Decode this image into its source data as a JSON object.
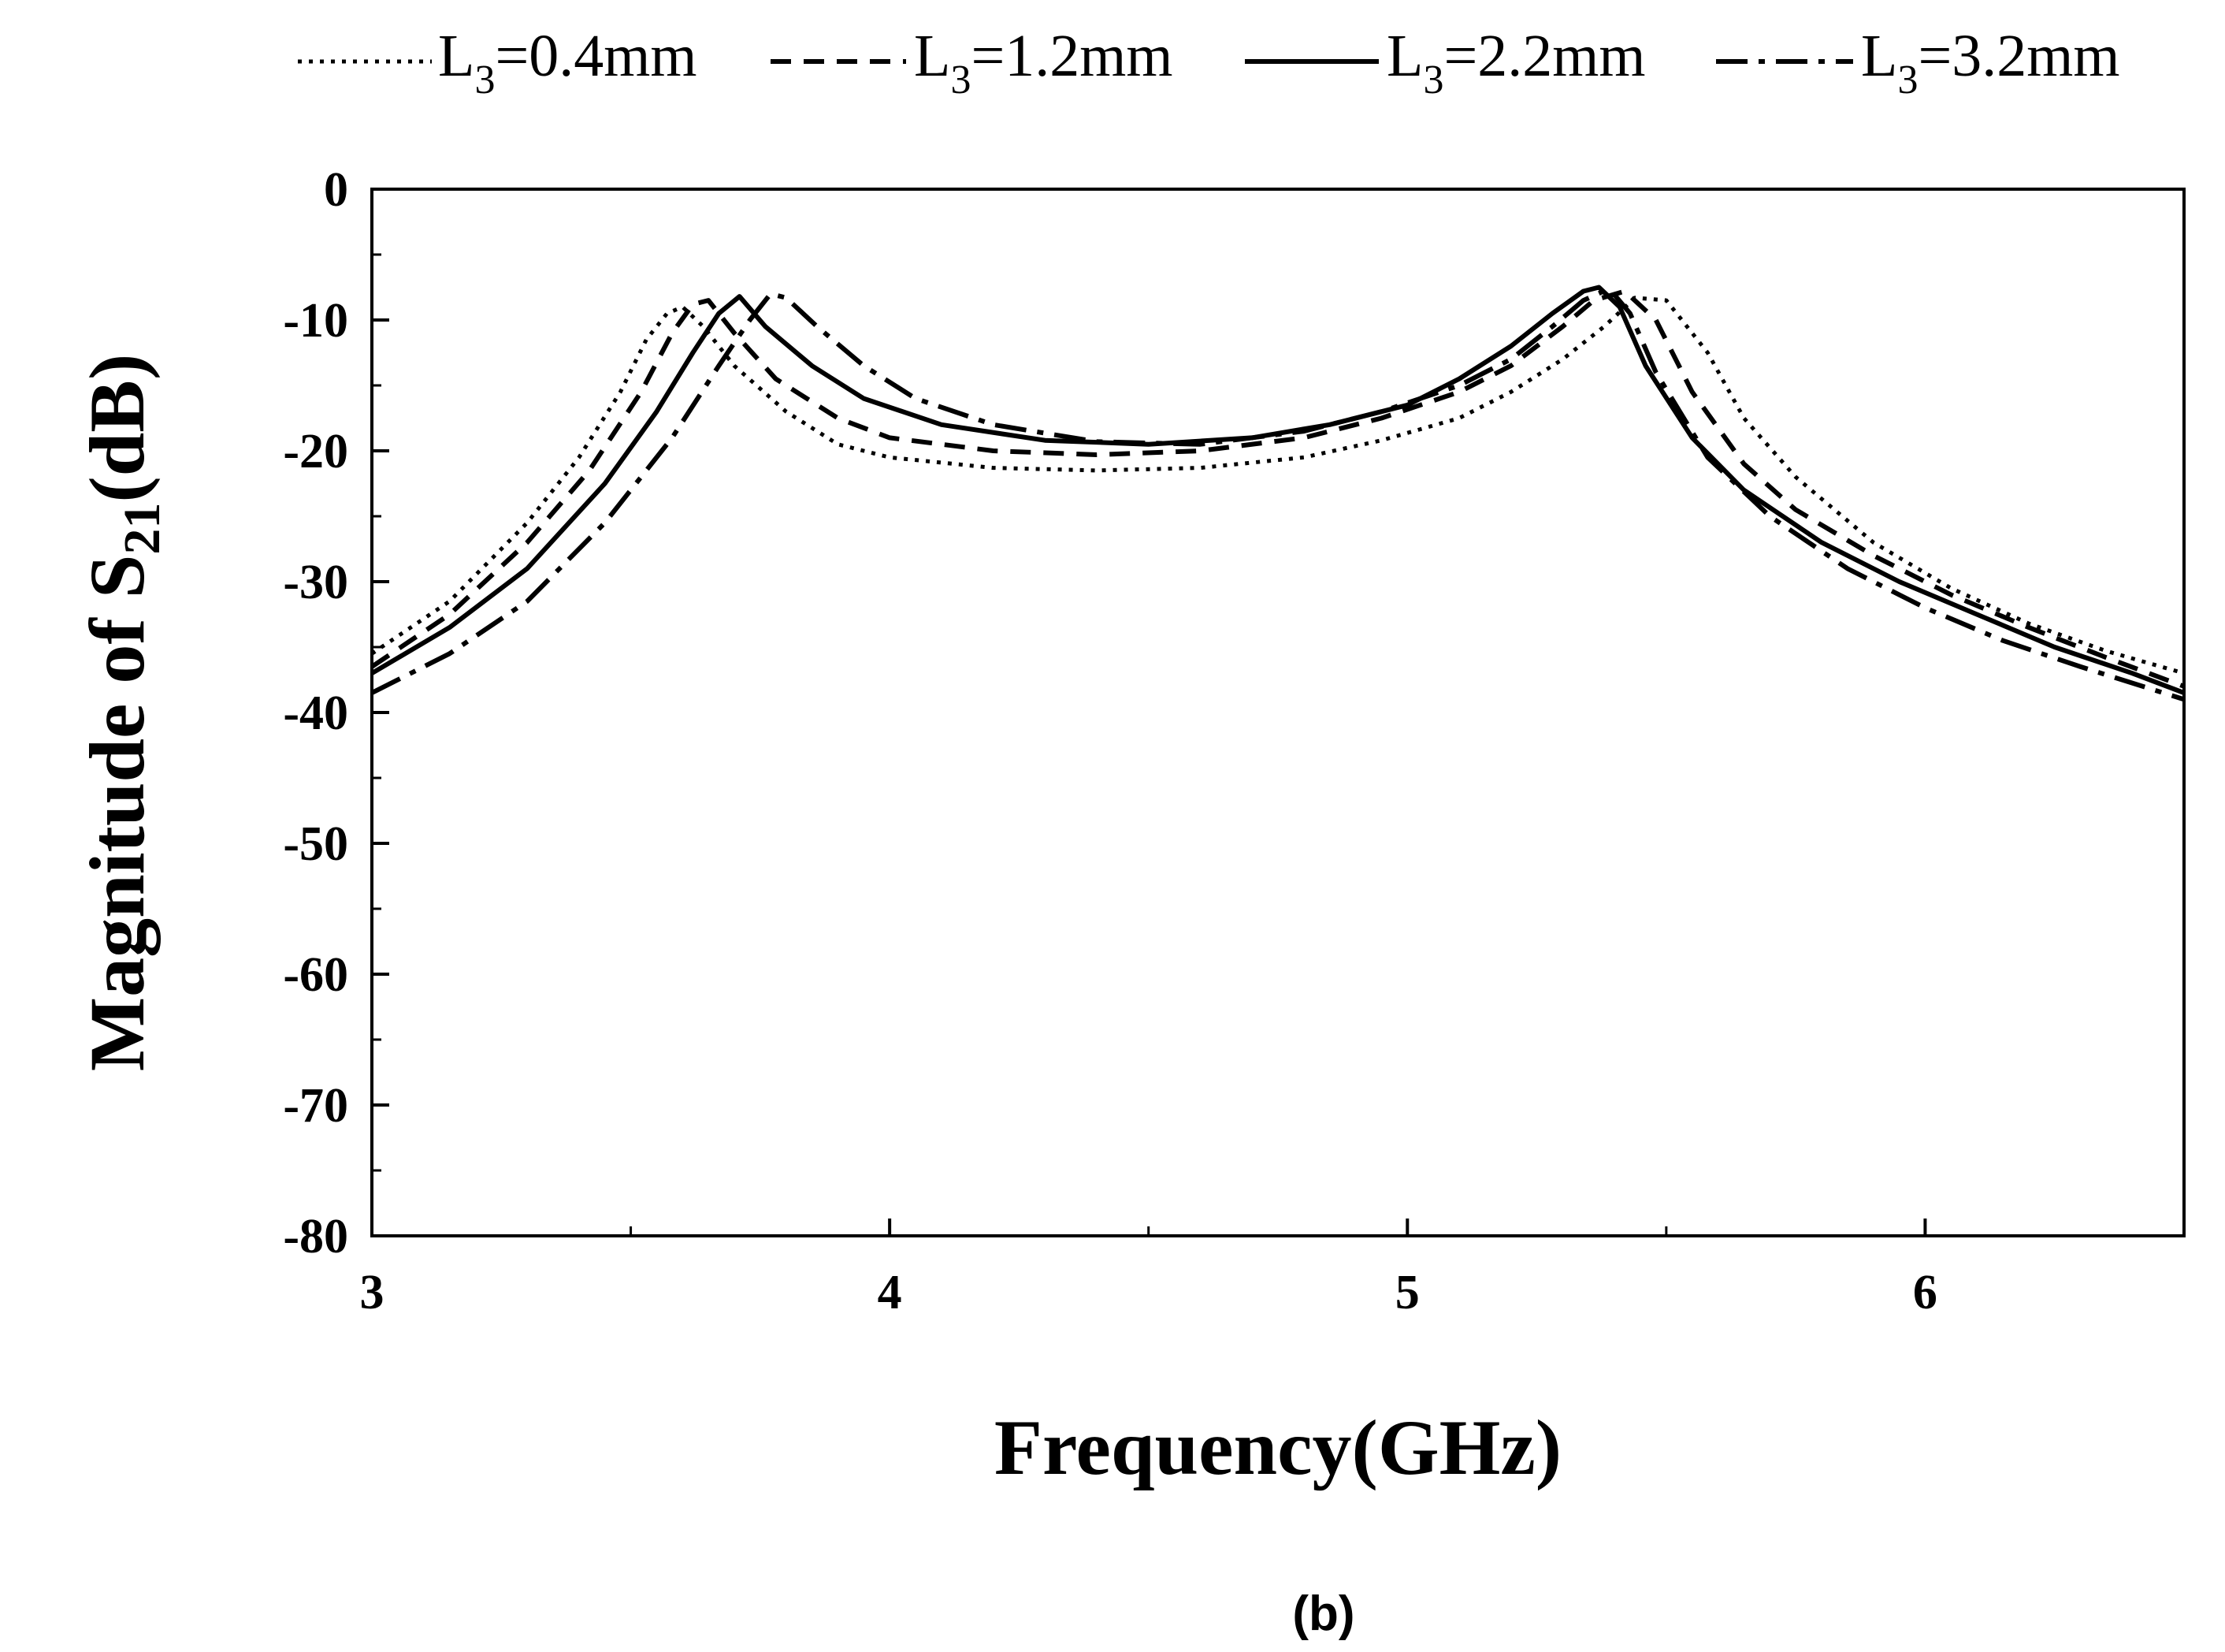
{
  "chart_data": {
    "type": "line",
    "title": "",
    "xlabel": "Frequency(GHz)",
    "ylabel": {
      "prefix": "Magnitude of S",
      "sub": "21",
      "suffix": "(dB)"
    },
    "xlim": [
      3,
      6.5
    ],
    "ylim": [
      -80,
      0
    ],
    "xticks": [
      3,
      4,
      5,
      6
    ],
    "xtick_labels": [
      "3",
      "4",
      "5",
      "6"
    ],
    "yticks": [
      0,
      -10,
      -20,
      -30,
      -40,
      -50,
      -60,
      -70,
      -80
    ],
    "ytick_labels": [
      "0",
      "-10",
      "-20",
      "-30",
      "-40",
      "-50",
      "-60",
      "-70",
      "-80"
    ],
    "legend_position": "top",
    "caption": "(b)",
    "series": [
      {
        "name": "L3=0.4mm",
        "legend": {
          "base": "L",
          "sub": "3",
          "rest": "=0.4mm"
        },
        "dash": "dotted",
        "x": [
          3.0,
          3.15,
          3.3,
          3.4,
          3.48,
          3.53,
          3.57,
          3.6,
          3.64,
          3.7,
          3.8,
          3.9,
          4.0,
          4.2,
          4.4,
          4.6,
          4.8,
          4.95,
          5.1,
          5.2,
          5.3,
          5.38,
          5.44,
          5.5,
          5.58,
          5.65,
          5.75,
          5.9,
          6.05,
          6.2,
          6.35,
          6.5
        ],
        "y": [
          -35.5,
          -31.5,
          -25.5,
          -20.5,
          -15.5,
          -11.5,
          -9.5,
          -9.0,
          -10.5,
          -13.5,
          -17.0,
          -19.5,
          -20.5,
          -21.3,
          -21.5,
          -21.3,
          -20.5,
          -19.2,
          -17.5,
          -15.5,
          -13.0,
          -10.5,
          -8.3,
          -8.5,
          -12.5,
          -17.5,
          -22.0,
          -27.0,
          -30.5,
          -33.2,
          -35.3,
          -37.0
        ]
      },
      {
        "name": "L3=1.2mm",
        "legend": {
          "base": "L",
          "sub": "3",
          "rest": "=1.2mm"
        },
        "dash": "dashed",
        "x": [
          3.0,
          3.15,
          3.3,
          3.42,
          3.52,
          3.58,
          3.62,
          3.65,
          3.7,
          3.78,
          3.9,
          4.0,
          4.2,
          4.4,
          4.6,
          4.8,
          4.95,
          5.1,
          5.2,
          5.3,
          5.36,
          5.42,
          5.48,
          5.55,
          5.65,
          5.75,
          5.9,
          6.05,
          6.2,
          6.35,
          6.5
        ],
        "y": [
          -36.5,
          -32.5,
          -27.0,
          -21.5,
          -15.5,
          -11.0,
          -8.8,
          -8.5,
          -11.0,
          -14.5,
          -17.5,
          -19.0,
          -20.0,
          -20.3,
          -20.0,
          -19.0,
          -17.5,
          -15.5,
          -13.5,
          -10.5,
          -8.5,
          -7.8,
          -10.0,
          -15.5,
          -21.0,
          -24.5,
          -28.0,
          -31.0,
          -33.5,
          -35.8,
          -38.0
        ]
      },
      {
        "name": "L3=2.2mm",
        "legend": {
          "base": "L",
          "sub": "3",
          "rest": "=2.2mm"
        },
        "dash": "solid",
        "x": [
          3.0,
          3.15,
          3.3,
          3.45,
          3.55,
          3.62,
          3.67,
          3.71,
          3.76,
          3.85,
          3.95,
          4.1,
          4.3,
          4.5,
          4.7,
          4.85,
          5.0,
          5.1,
          5.2,
          5.28,
          5.34,
          5.37,
          5.41,
          5.46,
          5.55,
          5.65,
          5.8,
          5.95,
          6.1,
          6.25,
          6.4,
          6.5
        ],
        "y": [
          -37.0,
          -33.5,
          -29.0,
          -22.5,
          -17.0,
          -12.5,
          -9.5,
          -8.2,
          -10.5,
          -13.5,
          -16.0,
          -18.0,
          -19.2,
          -19.5,
          -19.0,
          -18.0,
          -16.5,
          -14.5,
          -12.0,
          -9.5,
          -7.8,
          -7.5,
          -9.0,
          -13.5,
          -19.0,
          -23.0,
          -27.0,
          -30.0,
          -32.5,
          -35.0,
          -37.0,
          -38.5
        ]
      },
      {
        "name": "L3=3.2mm",
        "legend": {
          "base": "L",
          "sub": "3",
          "rest": "=3.2mm"
        },
        "dash": "dashdot",
        "x": [
          3.0,
          3.15,
          3.3,
          3.45,
          3.58,
          3.67,
          3.73,
          3.77,
          3.8,
          3.86,
          3.95,
          4.05,
          4.2,
          4.4,
          4.6,
          4.8,
          4.95,
          5.1,
          5.2,
          5.28,
          5.34,
          5.39,
          5.43,
          5.48,
          5.58,
          5.7,
          5.85,
          6.0,
          6.15,
          6.3,
          6.5
        ],
        "y": [
          -38.5,
          -35.5,
          -31.5,
          -25.5,
          -19.0,
          -13.5,
          -10.0,
          -8.0,
          -8.3,
          -10.5,
          -13.5,
          -16.0,
          -18.0,
          -19.3,
          -19.5,
          -18.5,
          -17.0,
          -15.0,
          -13.0,
          -10.5,
          -8.5,
          -7.6,
          -9.5,
          -14.0,
          -20.5,
          -25.0,
          -29.0,
          -32.0,
          -34.5,
          -36.5,
          -39.0
        ]
      }
    ]
  }
}
